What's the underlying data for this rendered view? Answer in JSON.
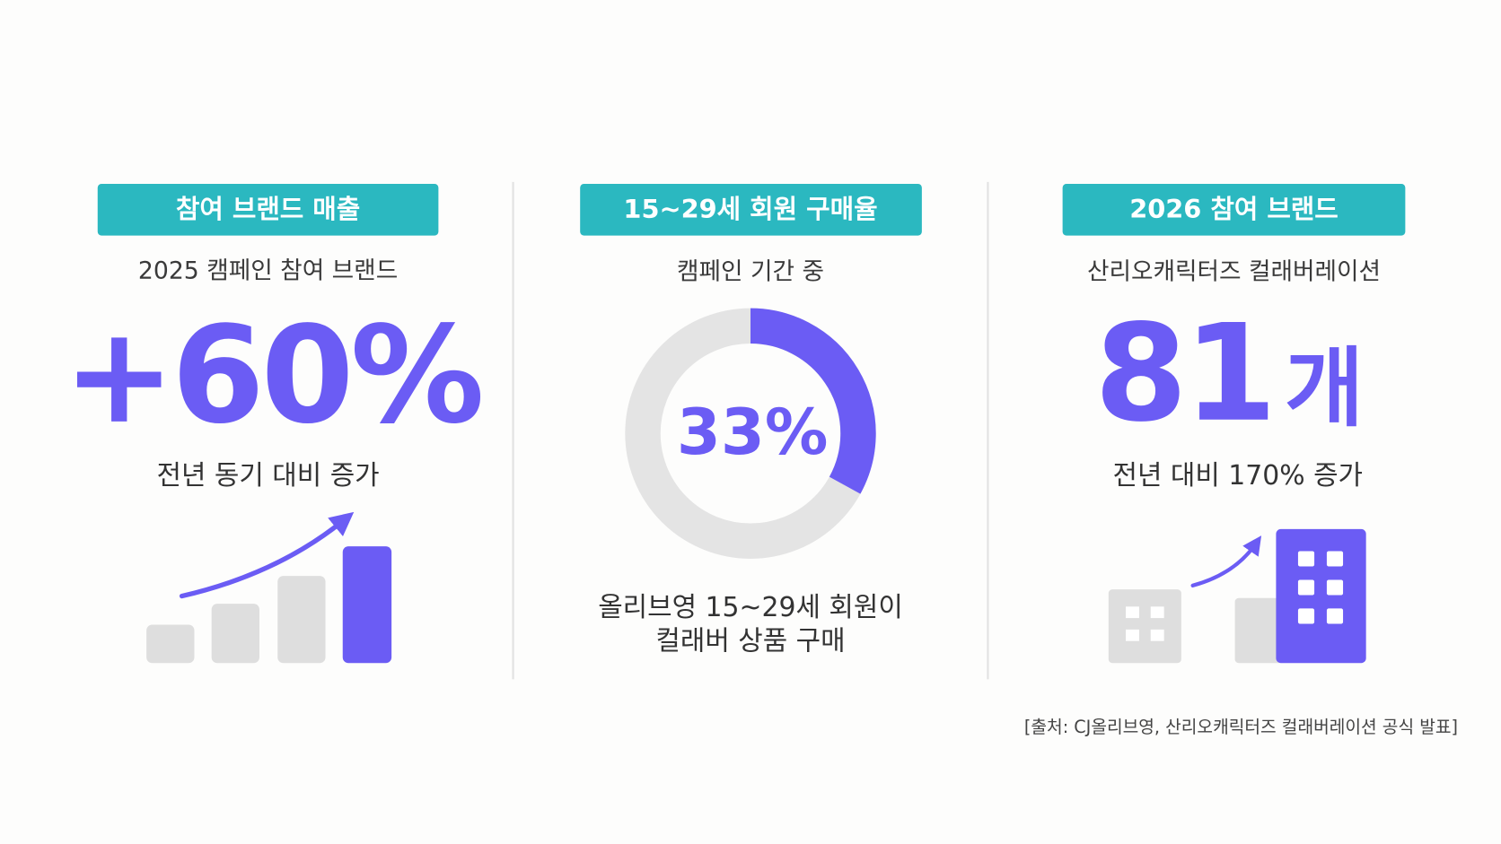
{
  "panels": [
    {
      "badge": "참여 브랜드 매출",
      "subtitle": "2025 캠페인 참여 브랜드",
      "stat": "+60%",
      "caption": "전년 동기 대비 증가"
    },
    {
      "badge": "15~29세 회원 구매율",
      "subtitle": "캠페인 기간 중",
      "donut": {
        "value": 33,
        "label": "33%"
      },
      "caption_lines": [
        "올리브영 15~29세 회원이",
        "컬래버 상품 구매"
      ]
    },
    {
      "badge": "2026 참여 브랜드",
      "subtitle": "산리오캐릭터즈 컬래버레이션",
      "stat": "81",
      "stat_unit": "개",
      "caption": "전년 대비 170% 증가"
    }
  ],
  "source": "[출처: CJ올리브영, 산리오캐릭터즈 컬래버레이션 공식 발표]"
}
